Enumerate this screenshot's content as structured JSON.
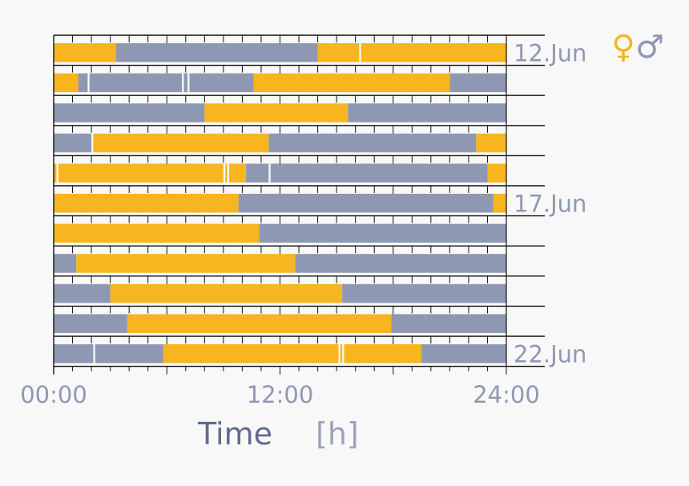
{
  "chart_data": {
    "type": "bar",
    "subtype": "timeline",
    "title": "",
    "xlabel": "Time",
    "xlabel_unit": "[h]",
    "ylabel": "",
    "xlim": [
      0,
      24
    ],
    "x_ticks": [
      {
        "value": 0,
        "label": "00:00"
      },
      {
        "value": 12,
        "label": "12:00"
      },
      {
        "value": 24,
        "label": "24:00"
      }
    ],
    "grid": false,
    "legend": {
      "position": "top-right",
      "entries": [
        {
          "name": "female",
          "symbol": "♀",
          "color": "#f7b51f"
        },
        {
          "name": "male",
          "symbol": "♂",
          "color": "#8f98b3"
        }
      ]
    },
    "colors": {
      "female": "#f7b51f",
      "male": "#8f98b3",
      "background": "#f8f8f8",
      "label": "#8f98b3"
    },
    "rows": [
      {
        "date_label": "12.Jun",
        "segments": [
          {
            "start": 0,
            "end": 3.3,
            "who": "female"
          },
          {
            "start": 3.3,
            "end": 14.0,
            "who": "male"
          },
          {
            "start": 14.0,
            "end": 16.2,
            "who": "female"
          },
          {
            "start": 16.3,
            "end": 24,
            "who": "female"
          }
        ]
      },
      {
        "date_label": "",
        "segments": [
          {
            "start": 0,
            "end": 1.3,
            "who": "female"
          },
          {
            "start": 1.3,
            "end": 1.8,
            "who": "male"
          },
          {
            "start": 1.9,
            "end": 6.8,
            "who": "male"
          },
          {
            "start": 6.9,
            "end": 7.1,
            "who": "male"
          },
          {
            "start": 7.2,
            "end": 10.6,
            "who": "male"
          },
          {
            "start": 10.6,
            "end": 21.0,
            "who": "female"
          },
          {
            "start": 21.0,
            "end": 24,
            "who": "male"
          }
        ]
      },
      {
        "date_label": "",
        "segments": [
          {
            "start": 0,
            "end": 8.0,
            "who": "male"
          },
          {
            "start": 8.0,
            "end": 15.6,
            "who": "female"
          },
          {
            "start": 15.6,
            "end": 24,
            "who": "male"
          }
        ]
      },
      {
        "date_label": "",
        "segments": [
          {
            "start": 0,
            "end": 2.0,
            "who": "male"
          },
          {
            "start": 2.1,
            "end": 11.4,
            "who": "female"
          },
          {
            "start": 11.4,
            "end": 22.4,
            "who": "male"
          },
          {
            "start": 22.4,
            "end": 24,
            "who": "female"
          }
        ]
      },
      {
        "date_label": "",
        "segments": [
          {
            "start": 0,
            "end": 0.15,
            "who": "female"
          },
          {
            "start": 0.25,
            "end": 9.0,
            "who": "female"
          },
          {
            "start": 9.1,
            "end": 9.2,
            "who": "female"
          },
          {
            "start": 9.3,
            "end": 10.2,
            "who": "female"
          },
          {
            "start": 10.2,
            "end": 11.4,
            "who": "male"
          },
          {
            "start": 11.5,
            "end": 23.0,
            "who": "male"
          },
          {
            "start": 23.0,
            "end": 24,
            "who": "female"
          }
        ]
      },
      {
        "date_label": "17.Jun",
        "segments": [
          {
            "start": 0,
            "end": 9.8,
            "who": "female"
          },
          {
            "start": 9.8,
            "end": 23.3,
            "who": "male"
          },
          {
            "start": 23.3,
            "end": 24,
            "who": "female"
          }
        ]
      },
      {
        "date_label": "",
        "segments": [
          {
            "start": 0,
            "end": 10.9,
            "who": "female"
          },
          {
            "start": 10.9,
            "end": 24,
            "who": "male"
          }
        ]
      },
      {
        "date_label": "",
        "segments": [
          {
            "start": 0,
            "end": 1.2,
            "who": "male"
          },
          {
            "start": 1.2,
            "end": 12.8,
            "who": "female"
          },
          {
            "start": 12.8,
            "end": 24,
            "who": "male"
          }
        ]
      },
      {
        "date_label": "",
        "segments": [
          {
            "start": 0,
            "end": 3.0,
            "who": "male"
          },
          {
            "start": 3.0,
            "end": 15.3,
            "who": "female"
          },
          {
            "start": 15.3,
            "end": 24,
            "who": "male"
          }
        ]
      },
      {
        "date_label": "",
        "segments": [
          {
            "start": 0,
            "end": 3.9,
            "who": "male"
          },
          {
            "start": 3.9,
            "end": 17.9,
            "who": "female"
          },
          {
            "start": 17.9,
            "end": 24,
            "who": "male"
          }
        ]
      },
      {
        "date_label": "22.Jun",
        "segments": [
          {
            "start": 0,
            "end": 2.1,
            "who": "male"
          },
          {
            "start": 2.2,
            "end": 5.8,
            "who": "male"
          },
          {
            "start": 5.8,
            "end": 15.1,
            "who": "female"
          },
          {
            "start": 15.2,
            "end": 15.3,
            "who": "female"
          },
          {
            "start": 15.4,
            "end": 19.5,
            "who": "female"
          },
          {
            "start": 19.5,
            "end": 24,
            "who": "male"
          }
        ]
      }
    ]
  }
}
